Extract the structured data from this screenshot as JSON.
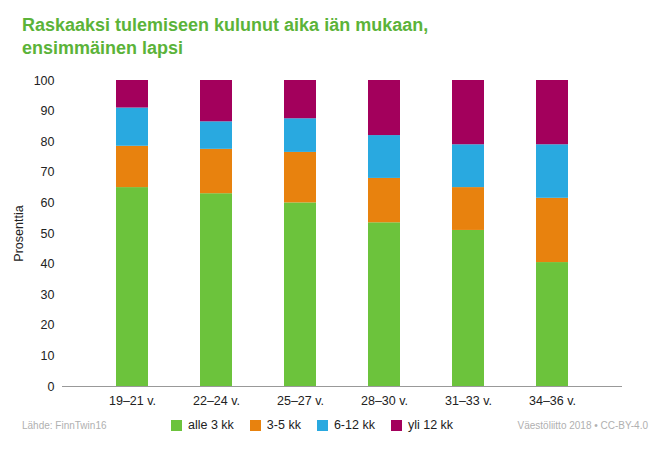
{
  "chart_data": {
    "type": "bar",
    "stacked": true,
    "title": "Raskaaksi tulemiseen kulunut aika iän mukaan, ensimmäinen lapsi",
    "y_label": "Prosenttia",
    "categories": [
      "19–21 v.",
      "22–24 v.",
      "25–27 v.",
      "28–30 v.",
      "31–33 v.",
      "34–36 v."
    ],
    "series": [
      {
        "name": "alle 3 kk",
        "color": "#6cc33c",
        "values": [
          65,
          63,
          60,
          53.5,
          51,
          40.5
        ]
      },
      {
        "name": "3-5 kk",
        "color": "#e8820e",
        "values": [
          13.5,
          14.5,
          16.5,
          14.5,
          14,
          21
        ]
      },
      {
        "name": "6-12 kk",
        "color": "#29a9e0",
        "values": [
          12.5,
          9,
          11,
          14,
          14,
          17.5
        ]
      },
      {
        "name": "yli 12 kk",
        "color": "#a3005c",
        "values": [
          9,
          13.5,
          12.5,
          18,
          21,
          21
        ]
      }
    ],
    "ylim": [
      0,
      100
    ],
    "yticks": [
      0,
      10,
      20,
      30,
      40,
      50,
      60,
      70,
      80,
      90,
      100
    ],
    "grid": false,
    "legend": "bottom",
    "annotations": [
      "Lähde: FinnTwin16",
      "Väestöliitto 2018 • CC-BY-4.0"
    ]
  }
}
